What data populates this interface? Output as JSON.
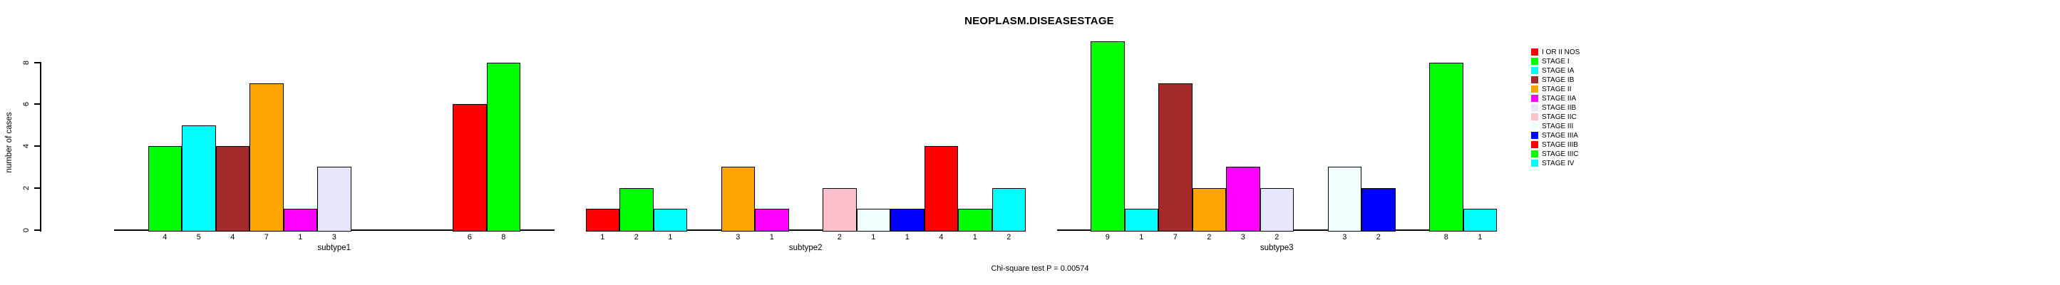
{
  "chart_data": {
    "type": "bar",
    "title": "NEOPLASM.DISEASESTAGE",
    "ylabel": "number of cases",
    "annotation": "Chi-square test P = 0.00574",
    "categories": [
      "I OR II NOS",
      "STAGE I",
      "STAGE IA",
      "STAGE IB",
      "STAGE II",
      "STAGE IIA",
      "STAGE IIB",
      "STAGE IIC",
      "STAGE III",
      "STAGE IIIA",
      "STAGE IIIB",
      "STAGE IIIC",
      "STAGE IV"
    ],
    "palette": [
      "#FF0000",
      "#00FF00",
      "#00FFFF",
      "#A52A2A",
      "#FFA500",
      "#FF00FF",
      "#E6E6FA",
      "#FFC0CB",
      "#F0FFFF",
      "#0000FF",
      "#FF0000",
      "#00FF00",
      "#00FFFF"
    ],
    "y_ticks": [
      0,
      2,
      4,
      6,
      8
    ],
    "ylim": [
      0,
      9
    ],
    "grid": false,
    "legend_position": "right",
    "panels": [
      {
        "xlabel": "subtype1",
        "values": [
          0,
          4,
          5,
          4,
          7,
          1,
          3,
          0,
          0,
          0,
          6,
          8,
          0
        ]
      },
      {
        "xlabel": "subtype2",
        "values": [
          1,
          2,
          1,
          0,
          3,
          1,
          0,
          2,
          1,
          1,
          4,
          1,
          2
        ]
      },
      {
        "xlabel": "subtype3",
        "values": [
          0,
          9,
          1,
          7,
          2,
          3,
          2,
          0,
          3,
          2,
          0,
          8,
          1
        ]
      }
    ],
    "legend": [
      {
        "label": "I OR II NOS",
        "color": "#FF0000"
      },
      {
        "label": "STAGE I",
        "color": "#00FF00"
      },
      {
        "label": "STAGE IA",
        "color": "#00FFFF"
      },
      {
        "label": "STAGE IB",
        "color": "#A52A2A"
      },
      {
        "label": "STAGE II",
        "color": "#FFA500"
      },
      {
        "label": "STAGE IIA",
        "color": "#FF00FF"
      },
      {
        "label": "STAGE IIB",
        "color": "#E6E6FA"
      },
      {
        "label": "STAGE IIC",
        "color": "#FFC0CB"
      },
      {
        "label": "STAGE III",
        "color": "#F0FFFF"
      },
      {
        "label": "STAGE IIIA",
        "color": "#0000FF"
      },
      {
        "label": "STAGE IIIB",
        "color": "#FF0000"
      },
      {
        "label": "STAGE IIIC",
        "color": "#00FF00"
      },
      {
        "label": "STAGE IV",
        "color": "#00FFFF"
      }
    ]
  }
}
